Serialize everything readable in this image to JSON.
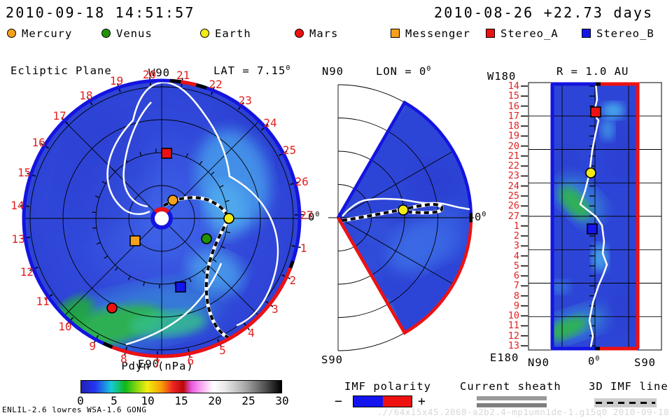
{
  "header": {
    "left_datetime": "2010-09-18 14:51:57",
    "right_datetime": "2010-08-26 +22.73 days"
  },
  "legend": {
    "items": [
      {
        "label": "Mercury",
        "marker": "circle",
        "color": "#f5a11c"
      },
      {
        "label": "Venus",
        "marker": "circle",
        "color": "#1f9400"
      },
      {
        "label": "Earth",
        "marker": "circle",
        "color": "#f3ea15"
      },
      {
        "label": "Mars",
        "marker": "circle",
        "color": "#ee1111"
      },
      {
        "label": "Messenger",
        "marker": "square",
        "color": "#f5a11c"
      },
      {
        "label": "Stereo_A",
        "marker": "square",
        "color": "#ee1111"
      },
      {
        "label": "Stereo_B",
        "marker": "square",
        "color": "#1414ee"
      }
    ]
  },
  "left_plot": {
    "title": "Ecliptic Plane",
    "top_label": "W90",
    "bottom_label": "E90",
    "lat": {
      "text": "LAT = 7.15",
      "sup": "0"
    },
    "zero": {
      "text": "0",
      "sup": "0"
    },
    "ring_numbers": [
      "1",
      "2",
      "3",
      "4",
      "5",
      "6",
      "7",
      "8",
      "9",
      "10",
      "11",
      "12",
      "13",
      "14",
      "15",
      "16",
      "17",
      "18",
      "19",
      "20",
      "21",
      "22",
      "23",
      "24",
      "25",
      "26",
      "27"
    ]
  },
  "middle_plot": {
    "top_label": "N90",
    "bottom_label": "S90",
    "title": {
      "text": "LON = 0",
      "sup": "0"
    },
    "zero": {
      "text": "0",
      "sup": "0"
    }
  },
  "right_plot": {
    "corner_top": "W180",
    "corner_bottom": "E180",
    "title": "R = 1.0 AU",
    "row_numbers": [
      "14",
      "15",
      "16",
      "17",
      "18",
      "19",
      "20",
      "21",
      "22",
      "23",
      "24",
      "25",
      "26",
      "27",
      "1",
      "2",
      "3",
      "4",
      "5",
      "6",
      "7",
      "8",
      "9",
      "10",
      "11",
      "12",
      "13"
    ],
    "x_axis": {
      "left": "N90",
      "center": {
        "text": "0",
        "sup": "0"
      },
      "right": "S90"
    }
  },
  "colorbar": {
    "title": "Pdyn (nPa)",
    "overlap_label": "E90",
    "ticks": [
      "0",
      "5",
      "10",
      "15",
      "20",
      "25",
      "30"
    ]
  },
  "bottom_legend": {
    "imf_polarity": {
      "title": "IMF polarity",
      "minus": "−",
      "plus": "+"
    },
    "current_sheath": {
      "title": "Current sheath"
    },
    "imf_line": {
      "title": "3D IMF line"
    }
  },
  "footer": {
    "model": "ENLIL-2.6 lowres WSA-1.6 GONG",
    "run_id": ".//64x15x45.2068-a2b2.4-mp1umn1de-1.g15q0   2010-09-18"
  },
  "colors": {
    "number_red": "#e32020",
    "boundary_blue": "#1414e0",
    "boundary_red": "#ee1111",
    "field_blue": "#2d45d6",
    "field_green": "#2db44e",
    "field_cyan": "#49a8ee"
  },
  "chart_data": [
    {
      "type": "heatmap",
      "title": "Ecliptic Plane",
      "projection": "polar",
      "quantity": "Pdyn (nPa)",
      "scale": [
        0,
        30
      ],
      "radius_au": 2.1,
      "lat_deg": 7.15,
      "day_ring_labels": [
        1,
        2,
        3,
        4,
        5,
        6,
        7,
        8,
        9,
        10,
        11,
        12,
        13,
        14,
        15,
        16,
        17,
        18,
        19,
        20,
        21,
        22,
        23,
        24,
        25,
        26,
        27
      ],
      "markers": [
        {
          "name": "Mercury",
          "r_au": 0.32,
          "angle_deg": 58
        },
        {
          "name": "Venus",
          "r_au": 0.75,
          "angle_deg": -24
        },
        {
          "name": "Earth",
          "r_au": 1.03,
          "angle_deg": 0
        },
        {
          "name": "Mars",
          "r_au": 1.55,
          "angle_deg": -119
        },
        {
          "name": "Messenger",
          "r_au": 0.53,
          "angle_deg": -140
        },
        {
          "name": "Stereo_A",
          "r_au": 0.99,
          "angle_deg": 86
        },
        {
          "name": "Stereo_B",
          "r_au": 1.08,
          "angle_deg": -75
        }
      ],
      "notes": "mostly ~2-5 nPa blue field; green enhancement (~8-10 nPa) arc at lower-left between days 8-11 extending toward Stereo_B; inner/outer boundary colored by IMF polarity (blue -, red +)"
    },
    {
      "type": "heatmap",
      "title": "Meridional plane LON = 0",
      "projection": "polar-fan",
      "quantity": "Pdyn (nPa)",
      "scale": [
        0,
        30
      ],
      "lat_extent_deg": [
        -60,
        60
      ],
      "markers": [
        {
          "name": "Earth",
          "r_au": 1.0,
          "lat_deg": 7.15
        }
      ],
      "notes": "blue field ~2-4 nPa; current sheet (white) near equator; 3D IMF line hairpin through Earth; outer boundary blue above equator, red below"
    },
    {
      "type": "heatmap",
      "title": "R = 1.0 AU",
      "projection": "lat-lon map",
      "quantity": "Pdyn (nPa)",
      "scale": [
        0,
        30
      ],
      "x_axis_lat": [
        "N90",
        "0",
        "S90"
      ],
      "y_axis_days": [
        14,
        15,
        16,
        17,
        18,
        19,
        20,
        21,
        22,
        23,
        24,
        25,
        26,
        27,
        1,
        2,
        3,
        4,
        5,
        6,
        7,
        8,
        9,
        10,
        11,
        12,
        13
      ],
      "markers": [
        {
          "name": "Stereo_A",
          "day": 16.5
        },
        {
          "name": "Earth",
          "day": 22.8
        },
        {
          "name": "Stereo_B",
          "day": 1.0
        }
      ],
      "notes": "data band spans ±60 deg latitude; left border blue (-), right border red (+); white current sheet snakes near 0 deg; green patches near days 25-27 and 11-12"
    }
  ]
}
